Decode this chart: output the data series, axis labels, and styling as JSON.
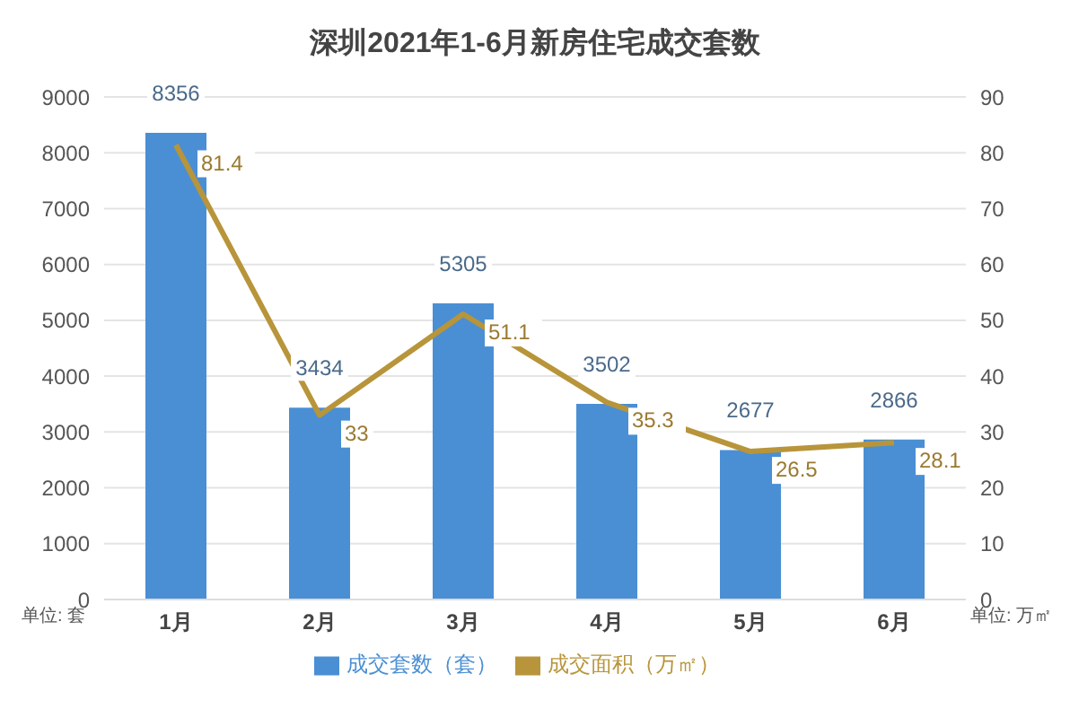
{
  "chart_data": {
    "type": "bar",
    "title": "深圳2021年1-6月新房住宅成交套数",
    "categories": [
      "1月",
      "2月",
      "3月",
      "4月",
      "5月",
      "6月"
    ],
    "series": [
      {
        "name": "成交套数（套）",
        "color": "#4a8fd4",
        "values": [
          8356,
          3434,
          5305,
          3502,
          2677,
          2866
        ]
      },
      {
        "name": "成交面积（万㎡）",
        "type": "line",
        "axis": "y2",
        "color": "#b8953a",
        "values": [
          81.4,
          33,
          51.1,
          35.3,
          26.5,
          28.1
        ]
      }
    ],
    "ylabel": "单位: 套",
    "y2label": "单位: 万㎡",
    "ylim": [
      0,
      9000
    ],
    "yticks": [
      0,
      1000,
      2000,
      3000,
      4000,
      5000,
      6000,
      7000,
      8000,
      9000
    ],
    "y2lim": [
      0,
      90
    ],
    "y2ticks": [
      0,
      10,
      20,
      30,
      40,
      50,
      60,
      70,
      80,
      90
    ],
    "grid": "y",
    "legend": "bottom",
    "data_labels": true,
    "marker": "none"
  }
}
